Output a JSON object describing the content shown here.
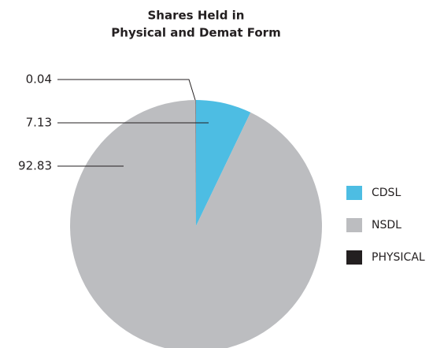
{
  "chart_data": {
    "type": "pie",
    "title": [
      "Shares Held in",
      "Physical and Demat Form"
    ],
    "categories": [
      "CDSL",
      "NSDL",
      "PHYSICAL"
    ],
    "values": [
      7.13,
      92.83,
      0.04
    ],
    "colors": [
      "#4dbde3",
      "#bcbdc0",
      "#231f20"
    ]
  }
}
